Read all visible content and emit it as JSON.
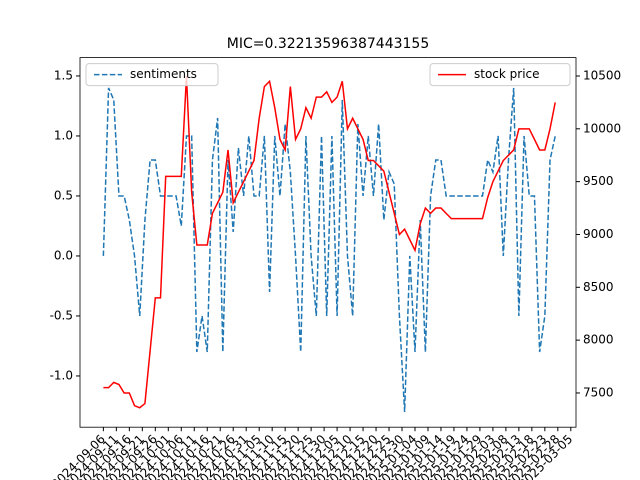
{
  "chart_data": {
    "type": "line",
    "title": "MIC=0.32213596387443155",
    "x": [
      "2024-09-06",
      "2024-09-08",
      "2024-09-10",
      "2024-09-12",
      "2024-09-14",
      "2024-09-16",
      "2024-09-18",
      "2024-09-20",
      "2024-09-22",
      "2024-09-24",
      "2024-09-26",
      "2024-09-28",
      "2024-09-30",
      "2024-10-02",
      "2024-10-04",
      "2024-10-06",
      "2024-10-08",
      "2024-10-10",
      "2024-10-12",
      "2024-10-14",
      "2024-10-16",
      "2024-10-18",
      "2024-10-20",
      "2024-10-22",
      "2024-10-24",
      "2024-10-26",
      "2024-10-28",
      "2024-10-30",
      "2024-11-01",
      "2024-11-03",
      "2024-11-05",
      "2024-11-07",
      "2024-11-09",
      "2024-11-11",
      "2024-11-13",
      "2024-11-15",
      "2024-11-17",
      "2024-11-19",
      "2024-11-21",
      "2024-11-23",
      "2024-11-25",
      "2024-11-27",
      "2024-11-29",
      "2024-12-01",
      "2024-12-03",
      "2024-12-05",
      "2024-12-07",
      "2024-12-09",
      "2024-12-11",
      "2024-12-13",
      "2024-12-15",
      "2024-12-17",
      "2024-12-19",
      "2024-12-21",
      "2024-12-23",
      "2024-12-25",
      "2024-12-27",
      "2024-12-29",
      "2024-12-31",
      "2025-01-02",
      "2025-01-04",
      "2025-01-06",
      "2025-01-08",
      "2025-01-10",
      "2025-01-12",
      "2025-01-14",
      "2025-01-16",
      "2025-01-18",
      "2025-01-20",
      "2025-01-22",
      "2025-01-24",
      "2025-01-26",
      "2025-01-28",
      "2025-01-30",
      "2025-02-01",
      "2025-02-03",
      "2025-02-05",
      "2025-02-07",
      "2025-02-09",
      "2025-02-11",
      "2025-02-13",
      "2025-02-15",
      "2025-02-17",
      "2025-02-19",
      "2025-02-21",
      "2025-02-23",
      "2025-02-25",
      "2025-02-27"
    ],
    "series": [
      {
        "name": "sentiments",
        "color": "#1f77b4",
        "dashed": true,
        "axis": "y",
        "legend": "upper left",
        "values": [
          0,
          1.4,
          1.3,
          0.5,
          0.5,
          0.3,
          0,
          -0.5,
          0.3,
          0.8,
          0.8,
          0.5,
          0.5,
          0.5,
          0.5,
          0.25,
          1.0,
          1.0,
          -0.8,
          -0.5,
          -0.8,
          0.8,
          1.15,
          -0.8,
          0.8,
          0.2,
          0.9,
          0.5,
          1.0,
          0.5,
          0.5,
          1.0,
          -0.3,
          1.0,
          0.5,
          1.1,
          0.7,
          0,
          -0.8,
          1.0,
          0,
          -0.5,
          1.0,
          -0.5,
          1.0,
          -0.5,
          1.3,
          0,
          -0.5,
          1.1,
          0.5,
          1.0,
          0.5,
          1.1,
          0.3,
          0.7,
          0.6,
          -0.5,
          -1.3,
          0,
          -0.8,
          0.3,
          -0.8,
          0.5,
          0.8,
          0.8,
          0.5,
          0.5,
          0.5,
          0.5,
          0.5,
          0.5,
          0.5,
          0.5,
          0.8,
          0.7,
          1.0,
          0,
          0.8,
          1.4,
          -0.5,
          1.0,
          0.5,
          0.5,
          -0.8,
          -0.5,
          0.8,
          1.0
        ]
      },
      {
        "name": "stock price",
        "color": "#ff0000",
        "dashed": false,
        "axis": "y2",
        "legend": "upper right",
        "values": [
          7550,
          7550,
          7600,
          7580,
          7500,
          7500,
          7380,
          7360,
          7400,
          7900,
          8400,
          8400,
          9550,
          9550,
          9550,
          9550,
          10500,
          9400,
          8900,
          8900,
          8900,
          9200,
          9300,
          9400,
          9800,
          9300,
          9400,
          9500,
          9600,
          9700,
          10100,
          10400,
          10450,
          10200,
          9900,
          9800,
          10400,
          9900,
          10000,
          10200,
          10100,
          10300,
          10300,
          10350,
          10250,
          10300,
          10450,
          10000,
          10100,
          10000,
          9900,
          9700,
          9700,
          9650,
          9600,
          9400,
          9200,
          9000,
          9050,
          8950,
          8850,
          9100,
          9250,
          9200,
          9250,
          9250,
          9200,
          9150,
          9150,
          9150,
          9150,
          9150,
          9150,
          9150,
          9350,
          9500,
          9600,
          9700,
          9750,
          9800,
          10000,
          10000,
          10000,
          9900,
          9800,
          9800,
          10000,
          10250
        ]
      }
    ],
    "xlim": [
      "2024-08-28",
      "2025-03-07"
    ],
    "xticks": [
      "2024-09-06",
      "2024-09-11",
      "2024-09-16",
      "2024-09-21",
      "2024-09-26",
      "2024-10-01",
      "2024-10-06",
      "2024-10-11",
      "2024-10-16",
      "2024-10-21",
      "2024-10-26",
      "2024-10-31",
      "2024-11-05",
      "2024-11-10",
      "2024-11-15",
      "2024-11-20",
      "2024-11-25",
      "2024-11-30",
      "2024-12-05",
      "2024-12-10",
      "2024-12-15",
      "2024-12-20",
      "2024-12-25",
      "2024-12-30",
      "2025-01-04",
      "2025-01-09",
      "2025-01-14",
      "2025-01-19",
      "2025-01-24",
      "2025-01-29",
      "2025-02-03",
      "2025-02-08",
      "2025-02-13",
      "2025-02-18",
      "2025-02-23",
      "2025-02-28",
      "2025-03-05"
    ],
    "ylim": [
      -1.427,
      1.653
    ],
    "yticks": [
      {
        "value": -1,
        "label": "-1.0"
      },
      -0.5,
      {
        "value": 0,
        "label": "0.0"
      },
      0.5,
      {
        "value": 1,
        "label": "1.0"
      },
      1.5
    ],
    "y2lim": [
      7176,
      10674
    ],
    "y2ticks": [
      7500,
      8000,
      8500,
      9000,
      9500,
      10000,
      10500
    ]
  }
}
